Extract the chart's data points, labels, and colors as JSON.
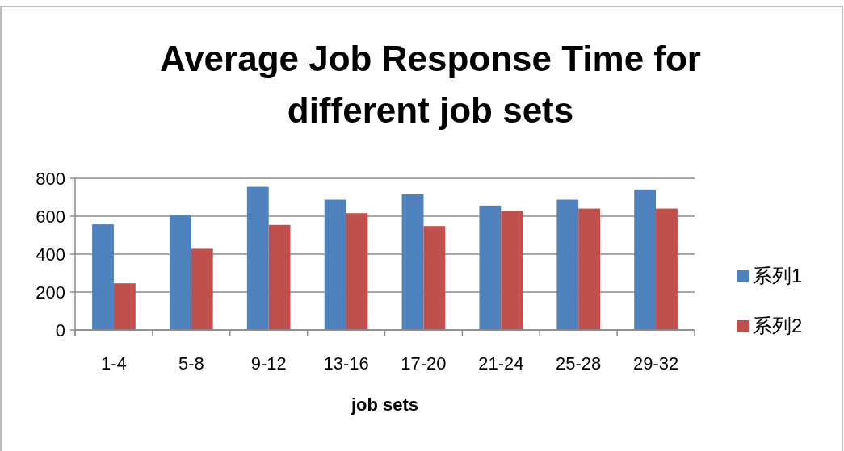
{
  "chart_data": {
    "type": "bar",
    "title": "Average Job Response Time for different job sets",
    "xlabel": "job sets",
    "categories": [
      "1-4",
      "5-8",
      "9-12",
      "13-16",
      "17-20",
      "21-24",
      "25-28",
      "29-32"
    ],
    "series": [
      {
        "name": "系列1",
        "color": "#4f81bd",
        "values": [
          557,
          606,
          755,
          687,
          715,
          656,
          687,
          741
        ]
      },
      {
        "name": "系列2",
        "color": "#c0504d",
        "values": [
          246,
          428,
          554,
          616,
          548,
          626,
          640,
          640
        ]
      }
    ],
    "ylim": [
      0,
      800
    ],
    "yticks": [
      0,
      200,
      400,
      600,
      800
    ],
    "grid": "y",
    "legend": "right"
  }
}
